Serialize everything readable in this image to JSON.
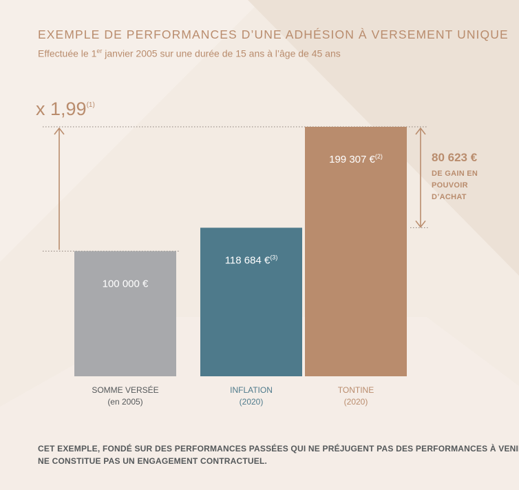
{
  "title": "EXEMPLE DE PERFORMANCES D’UNE ADHÉSION À VERSEMENT UNIQUE",
  "subtitle": {
    "before": "Effectuée le 1",
    "sup": "er",
    "after": " janvier 2005 sur une durée de 15 ans à l’âge de 45 ans"
  },
  "multiplier": {
    "text": "x 1,99",
    "note": "(1)"
  },
  "gain": {
    "amount": "80 623 €",
    "lines": [
      "DE GAIN EN",
      "POUVOIR",
      "D’ACHAT"
    ]
  },
  "footnote": [
    "CET EXEMPLE, FONDÉ SUR DES PERFORMANCES PASSÉES QUI NE PRÉJUGENT PAS DES PERFORMANCES À VENIR,",
    "NE CONSTITUE PAS UN ENGAGEMENT CONTRACTUEL."
  ],
  "colors": {
    "background": "#f3ebe3",
    "accent": "#b98c6d",
    "grey_bar": "#a8a9ac",
    "teal_bar": "#4e7a8b",
    "copper_bar": "#b98c6d",
    "footnote": "#54585a"
  },
  "chart_data": {
    "type": "bar",
    "categories": [
      "SOMME VERSÉE (en 2005)",
      "INFLATION (2020)",
      "TONTINE (2020)"
    ],
    "values": [
      100000,
      118684,
      199307
    ],
    "value_labels": [
      "100 000 €",
      "118 684 €",
      "199 307 €"
    ],
    "value_notes": [
      "",
      "(3)",
      "(2)"
    ],
    "category_lines": [
      [
        "SOMME VERSÉE",
        "(en 2005)"
      ],
      [
        "INFLATION",
        "(2020)"
      ],
      [
        "TONTINE",
        "(2020)"
      ]
    ],
    "bar_colors": [
      "#a8a9ac",
      "#4e7a8b",
      "#b98c6d"
    ],
    "label_colors": [
      "#54585a",
      "#4e7a8b",
      "#b98c6d"
    ],
    "ylim": [
      0,
      199307
    ],
    "xlabel": "",
    "ylabel": "",
    "grid": false,
    "legend": "none"
  }
}
